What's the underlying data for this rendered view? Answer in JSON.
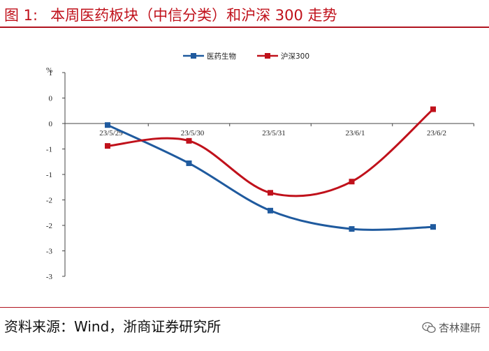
{
  "figure": {
    "label": "图 1:",
    "title": "本周医药板块（中信分类）和沪深 300 走势",
    "source": "资料来源：Wind，浙商证券研究所",
    "watermark": "杏林建研",
    "watermark_icon": "wechat-icon"
  },
  "chart_data": {
    "type": "line",
    "title": "",
    "xlabel": "",
    "ylabel": "%",
    "categories": [
      "23/5/29",
      "23/5/30",
      "23/5/31",
      "23/6/1",
      "23/6/2"
    ],
    "ylim": [
      -3,
      1
    ],
    "y_ticks": [
      1,
      0.5,
      0,
      -0.5,
      -1,
      -1.5,
      -2,
      -2.5,
      -3
    ],
    "y_tick_labels": [
      "1",
      "0",
      "0",
      "-1",
      "-1",
      "-2",
      "-2",
      "-3",
      "-3"
    ],
    "grid": false,
    "legend_position": "top-center",
    "series": [
      {
        "name": "医药生物",
        "color": "#1f5a9e",
        "marker": "square",
        "values": [
          -0.03,
          -0.78,
          -1.71,
          -2.07,
          -2.03
        ]
      },
      {
        "name": "沪深300",
        "color": "#c0111b",
        "marker": "square",
        "values": [
          -0.44,
          -0.34,
          -1.36,
          -1.14,
          0.28
        ]
      }
    ]
  }
}
